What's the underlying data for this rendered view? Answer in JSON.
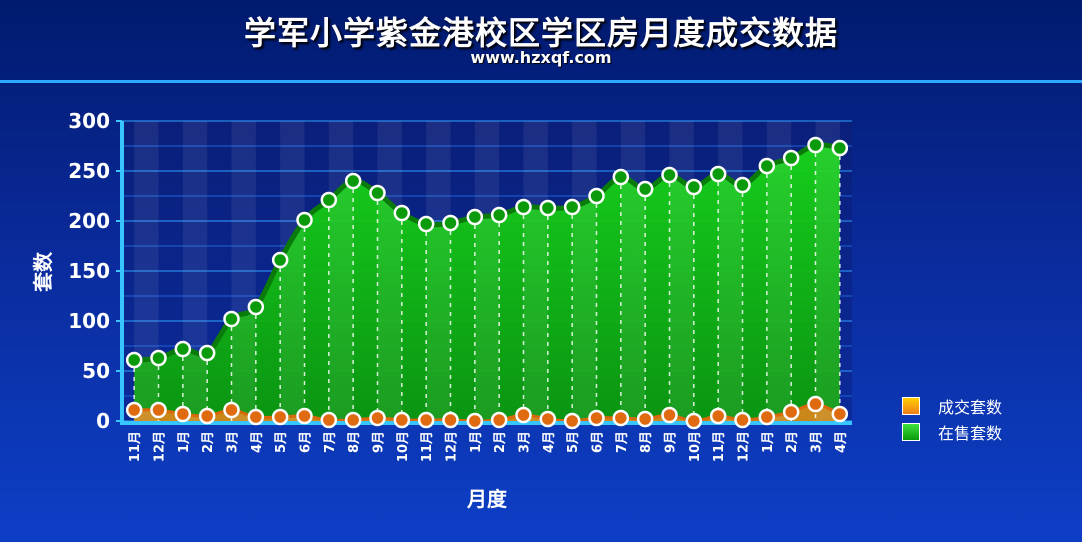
{
  "title": "学军小学紫金港校区学区房月度成交数据",
  "subtitle": "www.hzxqf.com",
  "chart_data": {
    "type": "area",
    "xlabel": "月度",
    "ylabel": "套数",
    "ylim": [
      0,
      300
    ],
    "yticks": [
      0,
      50,
      100,
      150,
      200,
      250,
      300
    ],
    "categories": [
      "11月",
      "12月",
      "1月",
      "2月",
      "3月",
      "4月",
      "5月",
      "6月",
      "7月",
      "8月",
      "9月",
      "10月",
      "11月",
      "12月",
      "1月",
      "2月",
      "3月",
      "4月",
      "5月",
      "6月",
      "7月",
      "8月",
      "9月",
      "10月",
      "11月",
      "12月",
      "1月",
      "2月",
      "3月",
      "4月"
    ],
    "series": [
      {
        "name": "成交套数",
        "color": "#f07d1a",
        "values": [
          11,
          11,
          7,
          5,
          11,
          4,
          4,
          5,
          1,
          1,
          3,
          1,
          1,
          1,
          0,
          1,
          6,
          2,
          0,
          3,
          3,
          2,
          6,
          0,
          5,
          1,
          4,
          9,
          17,
          7
        ]
      },
      {
        "name": "在售套数",
        "color": "#11c611",
        "values": [
          61,
          63,
          72,
          68,
          102,
          114,
          161,
          201,
          221,
          240,
          228,
          208,
          197,
          198,
          204,
          206,
          214,
          213,
          214,
          225,
          244,
          232,
          246,
          234,
          247,
          236,
          255,
          263,
          276,
          273
        ]
      }
    ],
    "legend": "right",
    "grid": true
  }
}
